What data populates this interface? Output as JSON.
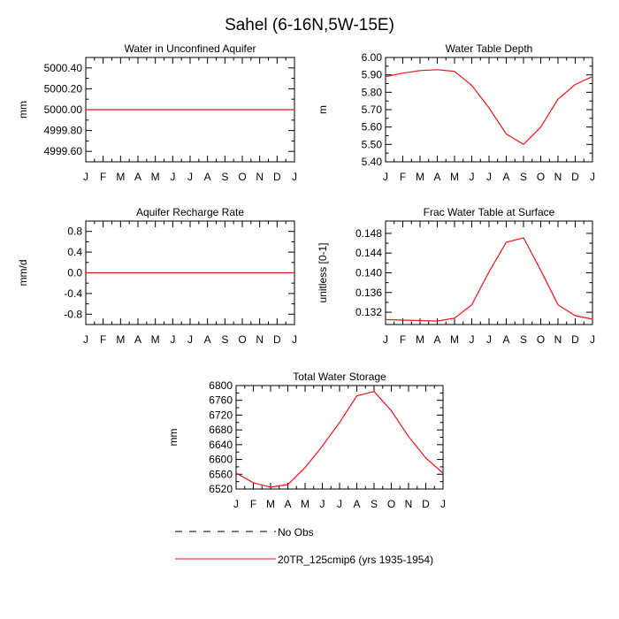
{
  "figure": {
    "title": "Sahel (6-16N,5W-15E)",
    "series_color": "#e8151b",
    "obs_color": "#000000"
  },
  "legend": {
    "entries": [
      {
        "label": "No Obs",
        "style": "dashed",
        "color": "#000000"
      },
      {
        "label": "20TR_125cmip6 (yrs 1935-1954)",
        "style": "solid",
        "color": "#e8151b"
      }
    ]
  },
  "chart_data": [
    {
      "id": "water-unconfined-aquifer",
      "type": "line",
      "title": "Water in Unconfined Aquifer",
      "ylabel": "mm",
      "categories": [
        "J",
        "F",
        "M",
        "A",
        "M",
        "J",
        "J",
        "A",
        "S",
        "O",
        "N",
        "D",
        "J"
      ],
      "ylim": [
        4999.5,
        5000.5
      ],
      "yticks": [
        4999.6,
        4999.8,
        5000.0,
        5000.2,
        5000.4
      ],
      "ytick_labels": [
        "4999.60",
        "4999.80",
        "5000.00",
        "5000.20",
        "5000.40"
      ],
      "series": [
        {
          "values": [
            5000.0,
            5000.0,
            5000.0,
            5000.0,
            5000.0,
            5000.0,
            5000.0,
            5000.0,
            5000.0,
            5000.0,
            5000.0,
            5000.0,
            5000.0
          ]
        }
      ]
    },
    {
      "id": "water-table-depth",
      "type": "line",
      "title": "Water Table Depth",
      "ylabel": "m",
      "categories": [
        "J",
        "F",
        "M",
        "A",
        "M",
        "J",
        "J",
        "A",
        "S",
        "O",
        "N",
        "D",
        "J"
      ],
      "ylim": [
        5.4,
        6.0
      ],
      "yticks": [
        5.4,
        5.5,
        5.6,
        5.7,
        5.8,
        5.9,
        6.0
      ],
      "ytick_labels": [
        "5.40",
        "5.50",
        "5.60",
        "5.70",
        "5.80",
        "5.90",
        "6.00"
      ],
      "series": [
        {
          "values": [
            5.89,
            5.91,
            5.925,
            5.93,
            5.92,
            5.84,
            5.71,
            5.56,
            5.5,
            5.6,
            5.76,
            5.845,
            5.89
          ]
        }
      ]
    },
    {
      "id": "aquifer-recharge-rate",
      "type": "line",
      "title": "Aquifer Recharge Rate",
      "ylabel": "mm/d",
      "categories": [
        "J",
        "F",
        "M",
        "A",
        "M",
        "J",
        "J",
        "A",
        "S",
        "O",
        "N",
        "D",
        "J"
      ],
      "ylim": [
        -1.0,
        1.0
      ],
      "yticks": [
        -0.8,
        -0.4,
        0.0,
        0.4,
        0.8
      ],
      "ytick_labels": [
        "-0.8",
        "-0.4",
        "0.0",
        "0.4",
        "0.8"
      ],
      "series": [
        {
          "values": [
            0,
            0,
            0,
            0,
            0,
            0,
            0,
            0,
            0,
            0,
            0,
            0,
            0
          ]
        }
      ]
    },
    {
      "id": "frac-water-table-surface",
      "type": "line",
      "title": "Frac Water Table at Surface",
      "ylabel": "unitless [0-1]",
      "categories": [
        "J",
        "F",
        "M",
        "A",
        "M",
        "J",
        "J",
        "A",
        "S",
        "O",
        "N",
        "D",
        "J"
      ],
      "ylim": [
        0.1295,
        0.1505
      ],
      "yticks": [
        0.132,
        0.136,
        0.14,
        0.144,
        0.148
      ],
      "ytick_labels": [
        "0.132",
        "0.136",
        "0.140",
        "0.144",
        "0.148"
      ],
      "series": [
        {
          "values": [
            0.1305,
            0.1304,
            0.1303,
            0.1302,
            0.1308,
            0.1335,
            0.1402,
            0.1462,
            0.1471,
            0.1405,
            0.1335,
            0.1313,
            0.1306
          ]
        }
      ]
    },
    {
      "id": "total-water-storage",
      "type": "line",
      "title": "Total Water Storage",
      "ylabel": "mm",
      "categories": [
        "J",
        "F",
        "M",
        "A",
        "M",
        "J",
        "J",
        "A",
        "S",
        "O",
        "N",
        "D",
        "J"
      ],
      "ylim": [
        6520,
        6800
      ],
      "yticks": [
        6520,
        6560,
        6600,
        6640,
        6680,
        6720,
        6760,
        6800
      ],
      "ytick_labels": [
        "6520",
        "6560",
        "6600",
        "6640",
        "6680",
        "6720",
        "6760",
        "6800"
      ],
      "series": [
        {
          "values": [
            6563,
            6537,
            6525,
            6532,
            6578,
            6636,
            6700,
            6772,
            6784,
            6732,
            6662,
            6604,
            6563
          ]
        }
      ]
    }
  ]
}
